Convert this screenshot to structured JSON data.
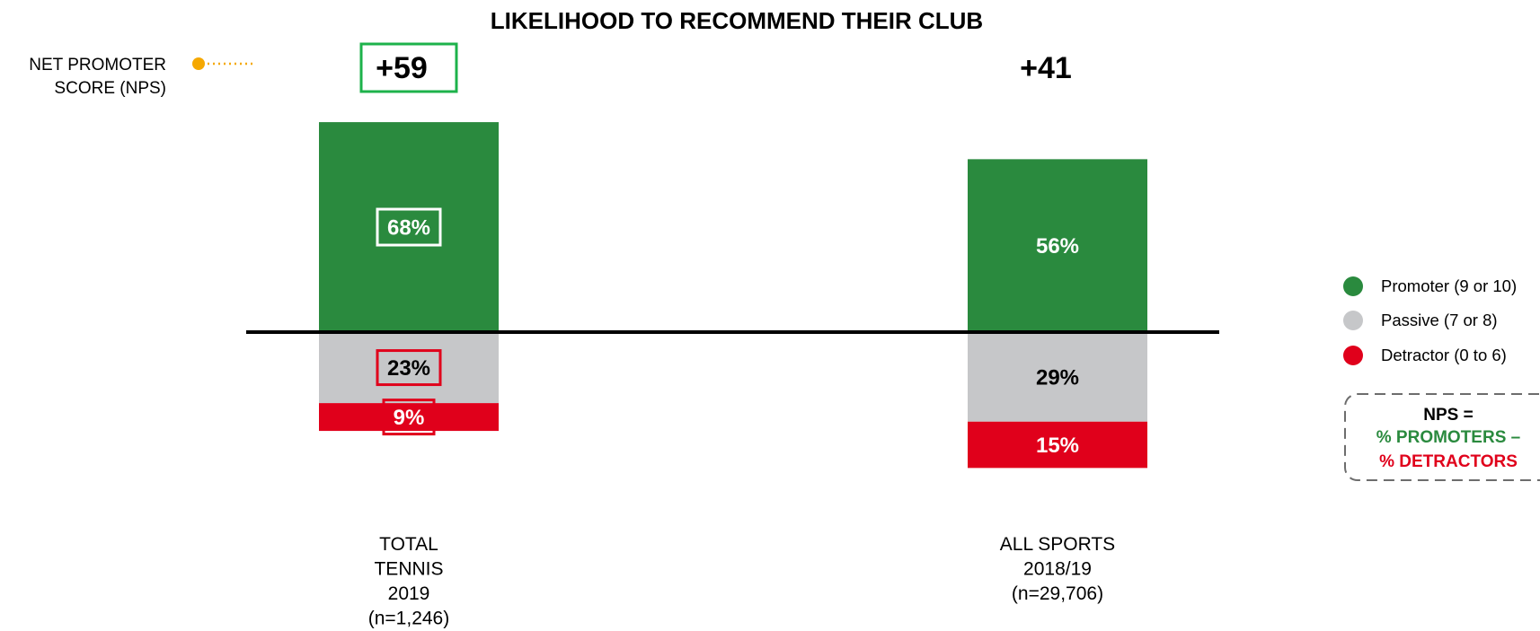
{
  "chart_data": {
    "type": "bar",
    "stacking": "diverging",
    "title": "LIKELIHOOD TO RECOMMEND THEIR CLUB",
    "categories": [
      [
        "TOTAL",
        "TENNIS",
        "2019",
        "(n=1,246)"
      ],
      [
        "ALL SPORTS",
        "2018/19",
        "(n=29,706)"
      ]
    ],
    "series": [
      {
        "name": "Promoter (9 or 10)",
        "values": [
          68,
          56
        ],
        "labels": [
          "68%",
          "56%"
        ],
        "color": "#2a8a3e",
        "text_color": "#ffffff",
        "direction": "up"
      },
      {
        "name": "Passive (7 or 8)",
        "values": [
          23,
          29
        ],
        "labels": [
          "23%",
          "29%"
        ],
        "color": "#c6c7c9",
        "text_color": "#000000",
        "direction": "down"
      },
      {
        "name": "Detractor (0 to 6)",
        "values": [
          9,
          15
        ],
        "labels": [
          "9%",
          "15%"
        ],
        "color": "#e0001b",
        "text_color": "#ffffff",
        "direction": "down"
      }
    ],
    "highlight_category": 0,
    "nps": {
      "label": [
        "NET PROMOTER",
        "SCORE (NPS)"
      ],
      "values": [
        "+59",
        "+41"
      ],
      "marker_color": "#f5a800"
    },
    "legend_position": "right",
    "formula": {
      "line1": "NPS =",
      "line2": "% PROMOTERS –",
      "line3": "% DETRACTORS",
      "promoter_color": "#2a8a3e",
      "detractor_color": "#e0001b"
    },
    "highlight_color_green": "#1db24b",
    "highlight_color_red": "#e0001b"
  }
}
